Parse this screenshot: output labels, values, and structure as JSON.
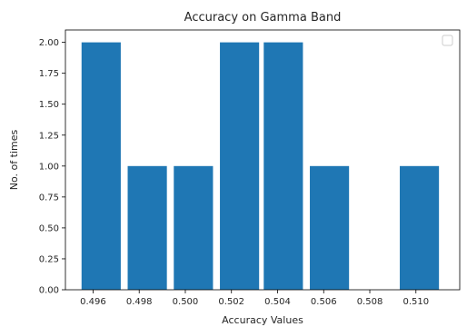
{
  "chart_data": {
    "type": "bar",
    "title": "Accuracy on Gamma Band",
    "xlabel": "Accuracy Values",
    "ylabel": "No. of times",
    "bars": [
      {
        "x_start": 0.4955,
        "x_end": 0.4972,
        "value": 2
      },
      {
        "x_start": 0.4975,
        "x_end": 0.4992,
        "value": 1
      },
      {
        "x_start": 0.4995,
        "x_end": 0.5012,
        "value": 1
      },
      {
        "x_start": 0.5015,
        "x_end": 0.5032,
        "value": 2
      },
      {
        "x_start": 0.5034,
        "x_end": 0.5051,
        "value": 2
      },
      {
        "x_start": 0.5054,
        "x_end": 0.5071,
        "value": 1
      },
      {
        "x_start": 0.5093,
        "x_end": 0.511,
        "value": 1
      }
    ],
    "xlim": [
      0.4948,
      0.5119
    ],
    "ylim": [
      0,
      2.1
    ],
    "x_ticks": [
      "0.496",
      "0.498",
      "0.500",
      "0.502",
      "0.504",
      "0.506",
      "0.508",
      "0.510"
    ],
    "y_ticks": [
      "0.00",
      "0.25",
      "0.50",
      "0.75",
      "1.00",
      "1.25",
      "1.50",
      "1.75",
      "2.00"
    ],
    "bar_color": "#1f77b4",
    "legend": "top-right (empty)",
    "grid": false
  }
}
